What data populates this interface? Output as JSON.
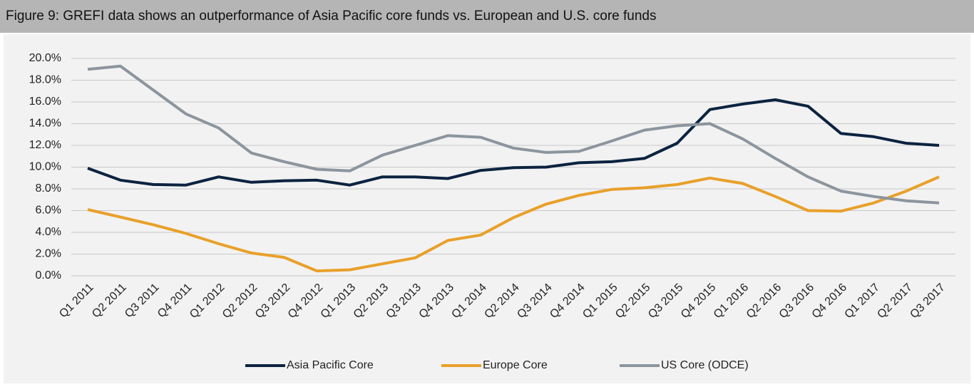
{
  "chart_data": {
    "type": "line",
    "title": "Figure 9: GREFI data shows an outperformance of Asia Pacific core funds vs. European and U.S. core funds",
    "categories": [
      "Q1 2011",
      "Q2 2011",
      "Q3 2011",
      "Q4 2011",
      "Q1 2012",
      "Q2 2012",
      "Q3 2012",
      "Q4 2012",
      "Q1 2013",
      "Q2 2013",
      "Q3 2013",
      "Q4 2013",
      "Q1 2014",
      "Q2 2014",
      "Q3 2014",
      "Q4 2014",
      "Q1 2015",
      "Q2 2015",
      "Q3 2015",
      "Q4 2015",
      "Q1 2016",
      "Q2 2016",
      "Q3 2016",
      "Q4 2016",
      "Q1 2017",
      "Q2 2017",
      "Q3 2017"
    ],
    "series": [
      {
        "name": "Asia Pacific Core",
        "color": "#0c2340",
        "values": [
          9.9,
          8.8,
          8.4,
          8.35,
          9.1,
          8.6,
          8.75,
          8.8,
          8.35,
          9.1,
          9.1,
          8.95,
          9.7,
          9.95,
          10.0,
          10.4,
          10.5,
          10.8,
          12.2,
          15.3,
          15.8,
          16.2,
          15.6,
          13.1,
          12.8,
          12.2,
          12.0
        ]
      },
      {
        "name": "Europe Core",
        "color": "#e8a02a",
        "values": [
          6.1,
          5.4,
          4.7,
          3.9,
          2.95,
          2.1,
          1.7,
          0.45,
          0.55,
          1.1,
          1.65,
          3.25,
          3.75,
          5.35,
          6.6,
          7.4,
          7.95,
          8.1,
          8.4,
          9.0,
          8.5,
          7.3,
          6.0,
          5.95,
          6.7,
          7.8,
          9.1
        ]
      },
      {
        "name": "US Core (ODCE)",
        "color": "#8c959e",
        "values": [
          19.0,
          19.3,
          17.1,
          14.9,
          13.6,
          11.3,
          10.5,
          9.8,
          9.65,
          11.1,
          12.0,
          12.9,
          12.75,
          11.75,
          11.35,
          11.45,
          12.4,
          13.4,
          13.8,
          14.0,
          12.6,
          10.8,
          9.1,
          7.8,
          7.3,
          6.9,
          6.7
        ]
      }
    ],
    "ylim": [
      0,
      20
    ],
    "yticks": [
      {
        "value": 0,
        "label": "0.0%"
      },
      {
        "value": 2,
        "label": "2.0%"
      },
      {
        "value": 4,
        "label": "4.0%"
      },
      {
        "value": 6,
        "label": "6.0%"
      },
      {
        "value": 8,
        "label": "8.0%"
      },
      {
        "value": 10,
        "label": "10.0%"
      },
      {
        "value": 12,
        "label": "12.0%"
      },
      {
        "value": 14,
        "label": "14.0%"
      },
      {
        "value": 16,
        "label": "16.0%"
      },
      {
        "value": 18,
        "label": "18.0%"
      },
      {
        "value": 20,
        "label": "20.0%"
      }
    ],
    "grid": true,
    "legend": "bottom"
  }
}
